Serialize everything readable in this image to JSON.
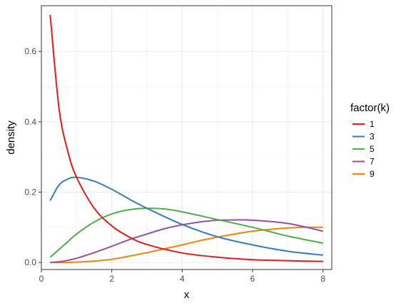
{
  "chart_data": {
    "type": "line",
    "title": "",
    "xlabel": "x",
    "ylabel": "density",
    "xlim": [
      0,
      8.25
    ],
    "ylim": [
      -0.02,
      0.73
    ],
    "x_ticks": [
      0,
      2,
      4,
      6,
      8
    ],
    "x_tick_labels": [
      "0",
      "2",
      "4",
      "6",
      "8"
    ],
    "y_ticks": [
      0.0,
      0.2,
      0.4,
      0.6
    ],
    "y_tick_labels": [
      "0.0",
      "0.2",
      "0.4",
      "0.6"
    ],
    "grid": true,
    "legend": {
      "title": "factor(k)",
      "placement": "right",
      "entries": [
        "1",
        "3",
        "5",
        "7",
        "9"
      ]
    },
    "series": [
      {
        "name": "1",
        "color": "#e41a1c",
        "x": [
          0.25,
          0.5,
          0.75,
          1,
          1.5,
          2,
          2.5,
          3,
          4,
          5,
          6,
          7,
          8
        ],
        "y": [
          0.704,
          0.439,
          0.316,
          0.242,
          0.154,
          0.104,
          0.072,
          0.051,
          0.027,
          0.015,
          0.008,
          0.005,
          0.003
        ]
      },
      {
        "name": "3",
        "color": "#377eb8",
        "x": [
          0.25,
          0.5,
          0.75,
          1,
          1.5,
          2,
          2.5,
          3,
          4,
          5,
          6,
          7,
          8
        ],
        "y": [
          0.176,
          0.22,
          0.237,
          0.242,
          0.231,
          0.208,
          0.18,
          0.154,
          0.108,
          0.073,
          0.05,
          0.032,
          0.021
        ]
      },
      {
        "name": "5",
        "color": "#4daf4a",
        "x": [
          0.25,
          0.5,
          0.75,
          1,
          1.5,
          2,
          2.5,
          3,
          3.5,
          4,
          5,
          6,
          7,
          8
        ],
        "y": [
          0.015,
          0.037,
          0.059,
          0.081,
          0.115,
          0.138,
          0.15,
          0.154,
          0.152,
          0.144,
          0.122,
          0.1,
          0.075,
          0.055
        ]
      },
      {
        "name": "7",
        "color": "#984ea3",
        "x": [
          0.25,
          0.5,
          0.75,
          1,
          1.5,
          2,
          2.5,
          3,
          3.5,
          4,
          4.5,
          5,
          5.5,
          6,
          7,
          8
        ],
        "y": [
          0.0,
          0.002,
          0.006,
          0.012,
          0.028,
          0.046,
          0.065,
          0.081,
          0.096,
          0.107,
          0.115,
          0.12,
          0.121,
          0.12,
          0.111,
          0.089
        ]
      },
      {
        "name": "9",
        "color": "#ff7f00",
        "x": [
          0.25,
          0.5,
          0.75,
          1,
          1.5,
          2,
          2.5,
          3,
          3.5,
          4,
          4.5,
          5,
          5.5,
          6,
          6.5,
          7,
          7.5,
          8
        ],
        "y": [
          0.0,
          0.0,
          0.0,
          0.001,
          0.004,
          0.009,
          0.018,
          0.028,
          0.039,
          0.05,
          0.062,
          0.072,
          0.081,
          0.089,
          0.094,
          0.098,
          0.1,
          0.1
        ]
      }
    ]
  }
}
